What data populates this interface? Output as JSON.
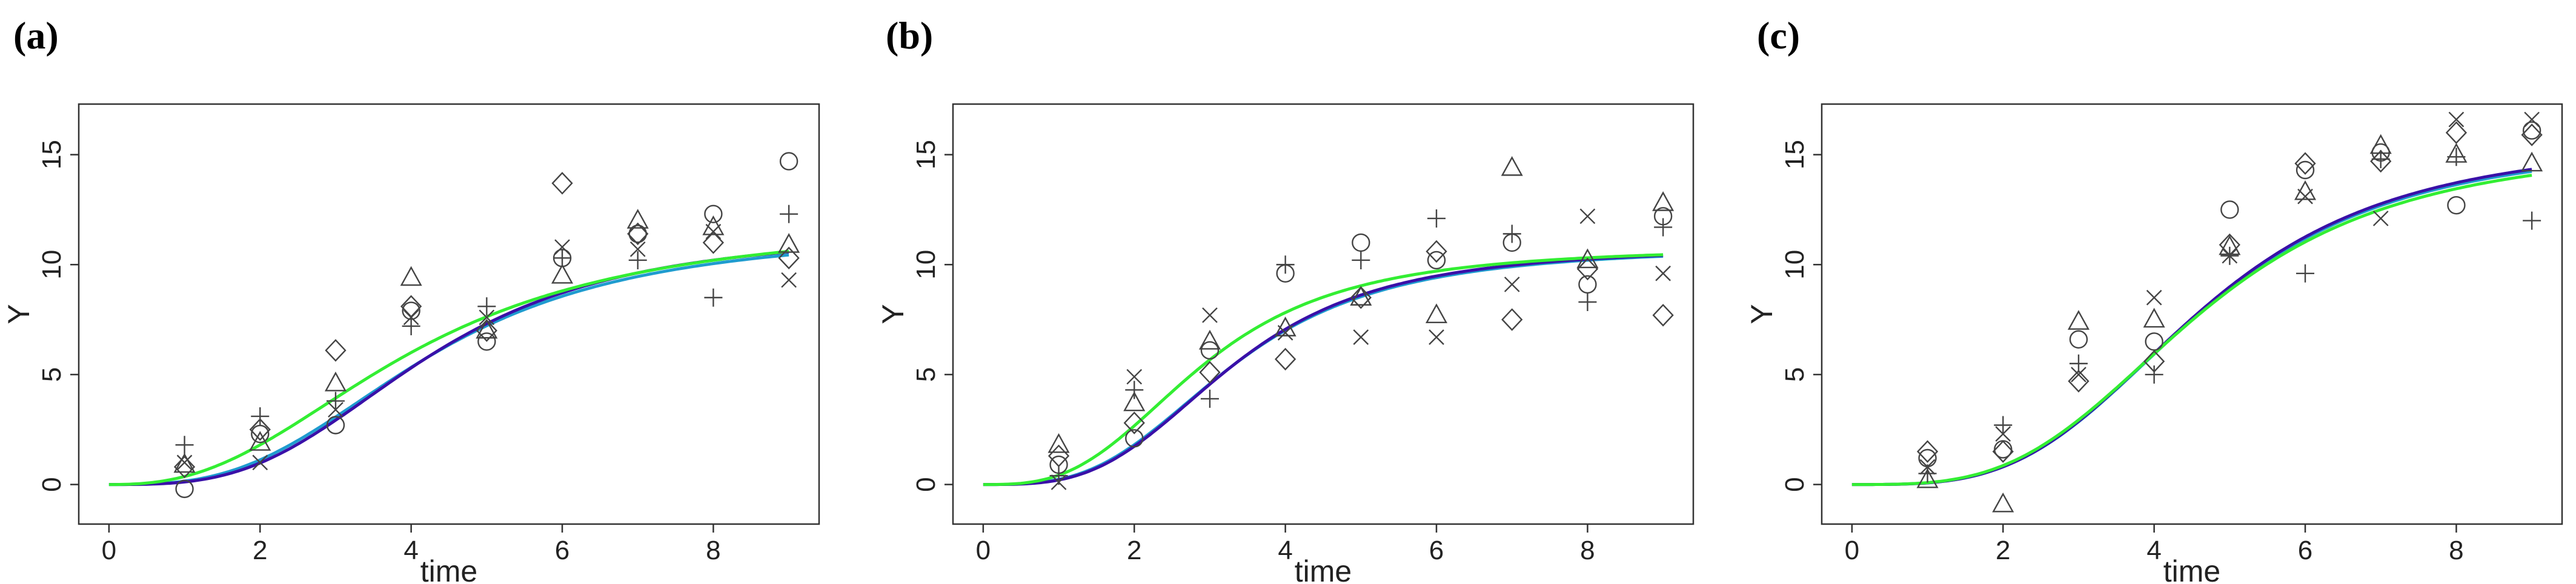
{
  "chart_data": [
    {
      "type": "scatter",
      "panel_label": "(a)",
      "xlabel": "time",
      "ylabel": "Y",
      "xlim": [
        -0.4,
        9.4
      ],
      "ylim": [
        -1.8,
        17.3
      ],
      "xticks": [
        0,
        2,
        4,
        6,
        8
      ],
      "yticks": [
        0,
        5,
        10,
        15
      ],
      "grid": false,
      "points": {
        "circle": [
          [
            1,
            -0.2
          ],
          [
            2,
            2.3
          ],
          [
            3,
            2.7
          ],
          [
            4,
            7.9
          ],
          [
            5,
            6.5
          ],
          [
            6,
            10.3
          ],
          [
            7,
            11.4
          ],
          [
            8,
            12.3
          ],
          [
            9,
            14.7
          ]
        ],
        "triangle": [
          [
            1,
            0.9
          ],
          [
            2,
            1.9
          ],
          [
            3,
            4.6
          ],
          [
            4,
            9.4
          ],
          [
            5,
            7.0
          ],
          [
            6,
            9.5
          ],
          [
            7,
            12.0
          ],
          [
            8,
            11.7
          ],
          [
            9,
            10.9
          ]
        ],
        "plus": [
          [
            1,
            1.8
          ],
          [
            2,
            3.1
          ],
          [
            3,
            3.8
          ],
          [
            4,
            7.2
          ],
          [
            5,
            8.1
          ],
          [
            6,
            10.3
          ],
          [
            7,
            10.2
          ],
          [
            8,
            8.5
          ],
          [
            9,
            12.3
          ]
        ],
        "cross": [
          [
            1,
            1.0
          ],
          [
            2,
            1.0
          ],
          [
            3,
            3.4
          ],
          [
            4,
            7.6
          ],
          [
            5,
            7.6
          ],
          [
            6,
            10.8
          ],
          [
            7,
            10.7
          ],
          [
            8,
            11.5
          ],
          [
            9,
            9.3
          ]
        ],
        "diamond": [
          [
            1,
            0.8
          ],
          [
            2,
            2.5
          ],
          [
            3,
            6.1
          ],
          [
            4,
            8.1
          ],
          [
            5,
            7.0
          ],
          [
            6,
            13.7
          ],
          [
            7,
            11.4
          ],
          [
            8,
            11.0
          ],
          [
            9,
            10.3
          ]
        ]
      },
      "curves": [
        {
          "color": "#1f9ccf",
          "A": 11.5,
          "K": 4.2,
          "n": 3.0
        },
        {
          "color": "#3a10a8",
          "A": 11.5,
          "K": 4.2,
          "n": 3.2
        },
        {
          "color": "#33ee33",
          "A": 12.0,
          "K": 4.0,
          "n": 2.5
        }
      ]
    },
    {
      "type": "scatter",
      "panel_label": "(b)",
      "xlabel": "time",
      "ylabel": "Y",
      "xlim": [
        -0.4,
        9.4
      ],
      "ylim": [
        -1.8,
        17.3
      ],
      "xticks": [
        0,
        2,
        4,
        6,
        8
      ],
      "yticks": [
        0,
        5,
        10,
        15
      ],
      "grid": false,
      "points": {
        "circle": [
          [
            1,
            0.9
          ],
          [
            2,
            2.1
          ],
          [
            3,
            6.1
          ],
          [
            4,
            9.6
          ],
          [
            5,
            11.0
          ],
          [
            6,
            10.2
          ],
          [
            7,
            11.0
          ],
          [
            8,
            9.1
          ],
          [
            9,
            12.2
          ]
        ],
        "triangle": [
          [
            1,
            1.8
          ],
          [
            2,
            3.7
          ],
          [
            3,
            6.5
          ],
          [
            4,
            7.1
          ],
          [
            5,
            8.5
          ],
          [
            6,
            7.7
          ],
          [
            7,
            14.4
          ],
          [
            8,
            10.2
          ],
          [
            9,
            12.8
          ]
        ],
        "plus": [
          [
            1,
            0.4
          ],
          [
            2,
            4.3
          ],
          [
            3,
            3.9
          ],
          [
            4,
            10.0
          ],
          [
            5,
            10.2
          ],
          [
            6,
            12.1
          ],
          [
            7,
            11.4
          ],
          [
            8,
            8.3
          ],
          [
            9,
            11.7
          ]
        ],
        "cross": [
          [
            1,
            0.1
          ],
          [
            2,
            4.9
          ],
          [
            3,
            7.7
          ],
          [
            4,
            6.9
          ],
          [
            5,
            6.7
          ],
          [
            6,
            6.7
          ],
          [
            7,
            9.1
          ],
          [
            8,
            12.2
          ],
          [
            9,
            9.6
          ]
        ],
        "diamond": [
          [
            1,
            1.3
          ],
          [
            2,
            2.8
          ],
          [
            3,
            5.1
          ],
          [
            4,
            5.7
          ],
          [
            5,
            8.5
          ],
          [
            6,
            10.6
          ],
          [
            7,
            7.5
          ],
          [
            8,
            9.8
          ],
          [
            9,
            7.7
          ]
        ]
      },
      "curves": [
        {
          "color": "#1f9ccf",
          "A": 10.8,
          "K": 3.3,
          "n": 3.2
        },
        {
          "color": "#3a10a8",
          "A": 10.8,
          "K": 3.3,
          "n": 3.3
        },
        {
          "color": "#33ee33",
          "A": 10.8,
          "K": 2.9,
          "n": 3.0
        }
      ]
    },
    {
      "type": "scatter",
      "panel_label": "(c)",
      "xlabel": "time",
      "ylabel": "Y",
      "xlim": [
        -0.4,
        9.4
      ],
      "ylim": [
        -1.8,
        17.3
      ],
      "xticks": [
        0,
        2,
        4,
        6,
        8
      ],
      "yticks": [
        0,
        5,
        10,
        15
      ],
      "grid": false,
      "points": {
        "circle": [
          [
            1,
            1.2
          ],
          [
            2,
            1.6
          ],
          [
            3,
            6.6
          ],
          [
            4,
            6.5
          ],
          [
            5,
            12.5
          ],
          [
            6,
            14.3
          ],
          [
            7,
            15.1
          ],
          [
            8,
            12.7
          ],
          [
            9,
            16.1
          ]
        ],
        "triangle": [
          [
            1,
            0.2
          ],
          [
            2,
            -0.9
          ],
          [
            3,
            7.4
          ],
          [
            4,
            7.5
          ],
          [
            5,
            10.8
          ],
          [
            6,
            13.3
          ],
          [
            7,
            15.4
          ],
          [
            8,
            15.0
          ],
          [
            9,
            14.6
          ]
        ],
        "plus": [
          [
            1,
            0.5
          ],
          [
            2,
            2.7
          ],
          [
            3,
            5.5
          ],
          [
            4,
            5.0
          ],
          [
            5,
            10.4
          ],
          [
            6,
            9.6
          ],
          [
            7,
            14.8
          ],
          [
            8,
            14.9
          ],
          [
            9,
            12.0
          ]
        ],
        "cross": [
          [
            1,
            0.8
          ],
          [
            2,
            2.3
          ],
          [
            3,
            5.0
          ],
          [
            4,
            8.5
          ],
          [
            5,
            10.4
          ],
          [
            6,
            13.1
          ],
          [
            7,
            12.1
          ],
          [
            8,
            16.6
          ],
          [
            9,
            16.6
          ]
        ],
        "diamond": [
          [
            1,
            1.5
          ],
          [
            2,
            1.5
          ],
          [
            3,
            4.7
          ],
          [
            4,
            5.6
          ],
          [
            5,
            10.9
          ],
          [
            6,
            14.6
          ],
          [
            7,
            14.7
          ],
          [
            8,
            16.0
          ],
          [
            9,
            15.9
          ]
        ]
      },
      "curves": [
        {
          "color": "#1f9ccf",
          "A": 15.6,
          "K": 4.6,
          "n": 3.5
        },
        {
          "color": "#3a10a8",
          "A": 15.7,
          "K": 4.6,
          "n": 3.5
        },
        {
          "color": "#33ee33",
          "A": 15.5,
          "K": 4.6,
          "n": 3.4
        }
      ]
    }
  ]
}
